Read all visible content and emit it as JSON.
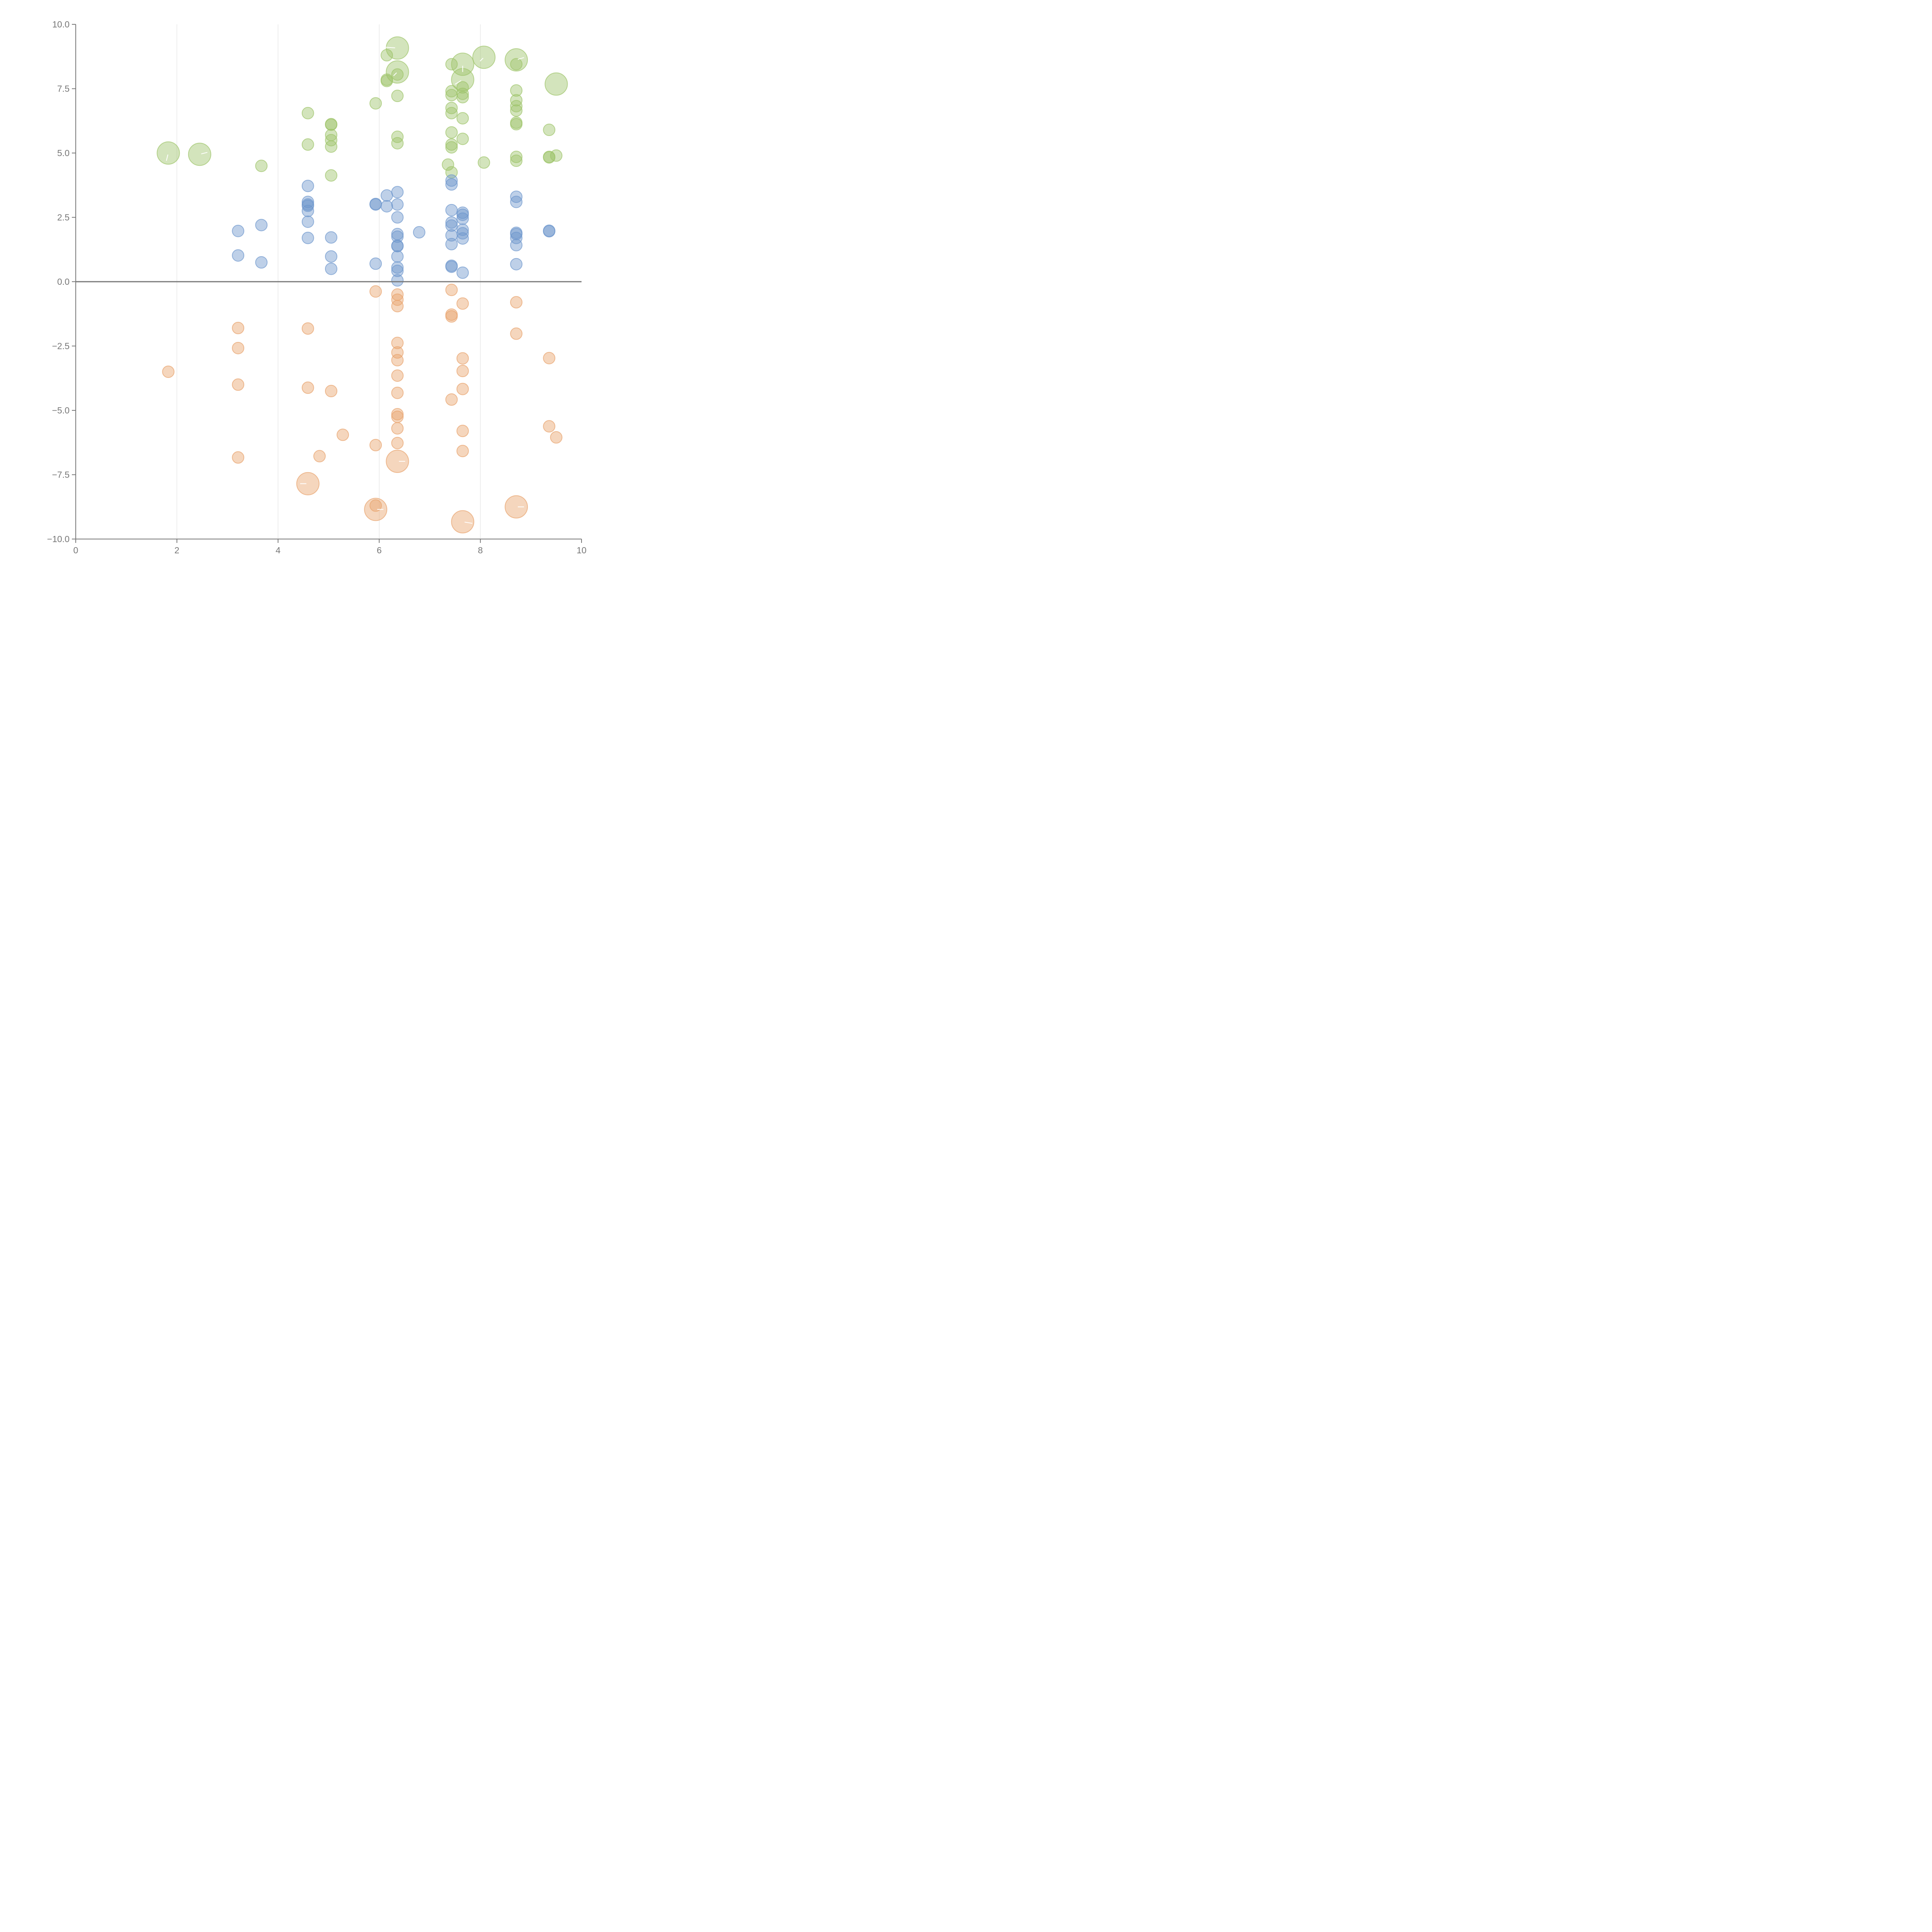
{
  "chart_data": {
    "type": "scatter",
    "title": "",
    "xlabel": "",
    "ylabel": "",
    "xlim": [
      0,
      10
    ],
    "ylim": [
      -10,
      10
    ],
    "x_ticks": [
      0,
      2,
      4,
      6,
      8,
      10
    ],
    "x_tick_labels": [
      "0",
      "2",
      "4",
      "6",
      "8",
      "10"
    ],
    "y_ticks": [
      -10,
      -7.5,
      -5,
      -2.5,
      0,
      2.5,
      5,
      7.5,
      10
    ],
    "y_tick_labels": [
      "−10.0",
      "−7.5",
      "−5.0",
      "−2.5",
      "0.0",
      "2.5",
      "5.0",
      "7.5",
      "10.0"
    ],
    "x_grid": true,
    "y_grid": false,
    "zero_line": true,
    "bubble_size_unit": "relative (1 = small bubble)",
    "series": [
      {
        "name": "green",
        "color": "#9ec46a",
        "points": [
          [
            1.83,
            5.0,
            2
          ],
          [
            2.45,
            4.95,
            2
          ],
          [
            3.67,
            4.5,
            1
          ],
          [
            4.59,
            6.55,
            1
          ],
          [
            4.59,
            5.33,
            1
          ],
          [
            5.05,
            6.12,
            1
          ],
          [
            5.05,
            6.1,
            1
          ],
          [
            5.05,
            5.7,
            1
          ],
          [
            5.05,
            5.5,
            1
          ],
          [
            5.05,
            5.25,
            1
          ],
          [
            5.05,
            4.13,
            1
          ],
          [
            5.93,
            6.93,
            1
          ],
          [
            6.15,
            8.8,
            1
          ],
          [
            6.15,
            7.85,
            1
          ],
          [
            6.15,
            7.8,
            1
          ],
          [
            6.36,
            9.08,
            2
          ],
          [
            6.36,
            8.15,
            2
          ],
          [
            6.36,
            8.05,
            1
          ],
          [
            6.36,
            7.22,
            1
          ],
          [
            6.36,
            5.63,
            1
          ],
          [
            6.36,
            5.38,
            1
          ],
          [
            7.36,
            4.55,
            1
          ],
          [
            7.43,
            8.45,
            1
          ],
          [
            7.43,
            7.4,
            1
          ],
          [
            7.43,
            7.25,
            1
          ],
          [
            7.43,
            6.75,
            1
          ],
          [
            7.43,
            6.55,
            1
          ],
          [
            7.43,
            5.8,
            1
          ],
          [
            7.43,
            5.33,
            1
          ],
          [
            7.43,
            5.22,
            1
          ],
          [
            7.43,
            4.25,
            1
          ],
          [
            7.65,
            8.45,
            2
          ],
          [
            7.65,
            7.85,
            2
          ],
          [
            7.65,
            7.55,
            1
          ],
          [
            7.65,
            7.3,
            1
          ],
          [
            7.65,
            7.17,
            1
          ],
          [
            7.65,
            6.35,
            1
          ],
          [
            7.65,
            5.55,
            1
          ],
          [
            8.07,
            8.72,
            2
          ],
          [
            8.07,
            4.63,
            1
          ],
          [
            8.71,
            8.62,
            2
          ],
          [
            8.71,
            8.45,
            1
          ],
          [
            8.71,
            7.43,
            1
          ],
          [
            8.71,
            7.05,
            1
          ],
          [
            8.71,
            6.82,
            1
          ],
          [
            8.71,
            6.65,
            1
          ],
          [
            8.71,
            6.18,
            1
          ],
          [
            8.71,
            6.12,
            1
          ],
          [
            8.71,
            4.85,
            1
          ],
          [
            8.71,
            4.7,
            1
          ],
          [
            9.36,
            5.9,
            1
          ],
          [
            9.36,
            4.85,
            1
          ],
          [
            9.36,
            4.83,
            1
          ],
          [
            9.5,
            4.9,
            1
          ],
          [
            9.5,
            7.68,
            2
          ]
        ]
      },
      {
        "name": "blue",
        "color": "#6e97cd",
        "points": [
          [
            3.21,
            1.97,
            1
          ],
          [
            3.21,
            1.02,
            1
          ],
          [
            3.67,
            2.2,
            1
          ],
          [
            3.67,
            0.75,
            1
          ],
          [
            4.59,
            3.72,
            1
          ],
          [
            4.59,
            3.1,
            1
          ],
          [
            4.59,
            3.0,
            1
          ],
          [
            4.59,
            2.95,
            1
          ],
          [
            4.59,
            2.75,
            1
          ],
          [
            4.59,
            2.33,
            1
          ],
          [
            4.59,
            1.7,
            1
          ],
          [
            5.05,
            1.72,
            1
          ],
          [
            5.05,
            0.98,
            1
          ],
          [
            5.05,
            0.5,
            1
          ],
          [
            5.93,
            3.0,
            1
          ],
          [
            5.93,
            3.02,
            1
          ],
          [
            5.93,
            0.7,
            1
          ],
          [
            6.15,
            3.35,
            1
          ],
          [
            6.15,
            2.93,
            1
          ],
          [
            6.36,
            3.48,
            1
          ],
          [
            6.36,
            3.0,
            1
          ],
          [
            6.36,
            2.5,
            1
          ],
          [
            6.36,
            1.85,
            1
          ],
          [
            6.36,
            1.75,
            1
          ],
          [
            6.36,
            1.4,
            1
          ],
          [
            6.36,
            1.38,
            1
          ],
          [
            6.36,
            0.98,
            1
          ],
          [
            6.36,
            0.55,
            1
          ],
          [
            6.36,
            0.42,
            1
          ],
          [
            6.36,
            0.05,
            1
          ],
          [
            6.79,
            1.92,
            1
          ],
          [
            7.43,
            3.93,
            1
          ],
          [
            7.43,
            3.78,
            1
          ],
          [
            7.43,
            2.78,
            1
          ],
          [
            7.43,
            2.3,
            1
          ],
          [
            7.43,
            2.18,
            1
          ],
          [
            7.43,
            1.8,
            1
          ],
          [
            7.43,
            1.46,
            1
          ],
          [
            7.43,
            0.62,
            1
          ],
          [
            7.43,
            0.58,
            1
          ],
          [
            7.65,
            2.68,
            1
          ],
          [
            7.65,
            2.6,
            1
          ],
          [
            7.65,
            2.45,
            1
          ],
          [
            7.65,
            2.02,
            1
          ],
          [
            7.65,
            1.88,
            1
          ],
          [
            7.65,
            1.68,
            1
          ],
          [
            7.65,
            0.35,
            1
          ],
          [
            8.71,
            3.3,
            1
          ],
          [
            8.71,
            3.1,
            1
          ],
          [
            8.71,
            1.9,
            1
          ],
          [
            8.71,
            1.85,
            1
          ],
          [
            8.71,
            1.7,
            1
          ],
          [
            8.71,
            1.42,
            1
          ],
          [
            8.71,
            0.68,
            1
          ],
          [
            9.36,
            1.98,
            1
          ],
          [
            9.36,
            1.96,
            1
          ]
        ]
      },
      {
        "name": "orange",
        "color": "#e8a36c",
        "points": [
          [
            1.83,
            -3.5,
            1
          ],
          [
            3.21,
            -1.8,
            1
          ],
          [
            3.21,
            -2.58,
            1
          ],
          [
            3.21,
            -4.0,
            1
          ],
          [
            3.21,
            -6.83,
            1
          ],
          [
            4.59,
            -1.82,
            1
          ],
          [
            4.59,
            -4.12,
            1
          ],
          [
            4.59,
            -7.85,
            2
          ],
          [
            4.82,
            -6.78,
            1
          ],
          [
            5.05,
            -4.25,
            1
          ],
          [
            5.28,
            -5.95,
            1
          ],
          [
            5.93,
            -0.38,
            1
          ],
          [
            5.93,
            -6.35,
            1
          ],
          [
            5.93,
            -8.7,
            1
          ],
          [
            5.93,
            -8.85,
            2
          ],
          [
            6.36,
            -0.5,
            1
          ],
          [
            6.36,
            -0.7,
            1
          ],
          [
            6.36,
            -0.95,
            1
          ],
          [
            6.36,
            -2.38,
            1
          ],
          [
            6.36,
            -2.75,
            1
          ],
          [
            6.36,
            -3.05,
            1
          ],
          [
            6.36,
            -3.65,
            1
          ],
          [
            6.36,
            -4.32,
            1
          ],
          [
            6.36,
            -5.15,
            1
          ],
          [
            6.36,
            -5.25,
            1
          ],
          [
            6.36,
            -5.7,
            1
          ],
          [
            6.36,
            -6.27,
            1
          ],
          [
            6.36,
            -6.98,
            2
          ],
          [
            7.43,
            -0.32,
            1
          ],
          [
            7.43,
            -1.28,
            1
          ],
          [
            7.43,
            -1.35,
            1
          ],
          [
            7.43,
            -4.58,
            1
          ],
          [
            7.65,
            -0.85,
            1
          ],
          [
            7.65,
            -2.98,
            1
          ],
          [
            7.65,
            -3.47,
            1
          ],
          [
            7.65,
            -4.17,
            1
          ],
          [
            7.65,
            -5.8,
            1
          ],
          [
            7.65,
            -6.58,
            1
          ],
          [
            7.65,
            -9.33,
            2
          ],
          [
            8.71,
            -0.8,
            1
          ],
          [
            8.71,
            -2.02,
            1
          ],
          [
            8.71,
            -8.75,
            2
          ],
          [
            9.36,
            -2.97,
            1
          ],
          [
            9.36,
            -5.62,
            1
          ],
          [
            9.5,
            -6.05,
            1
          ]
        ]
      }
    ]
  }
}
